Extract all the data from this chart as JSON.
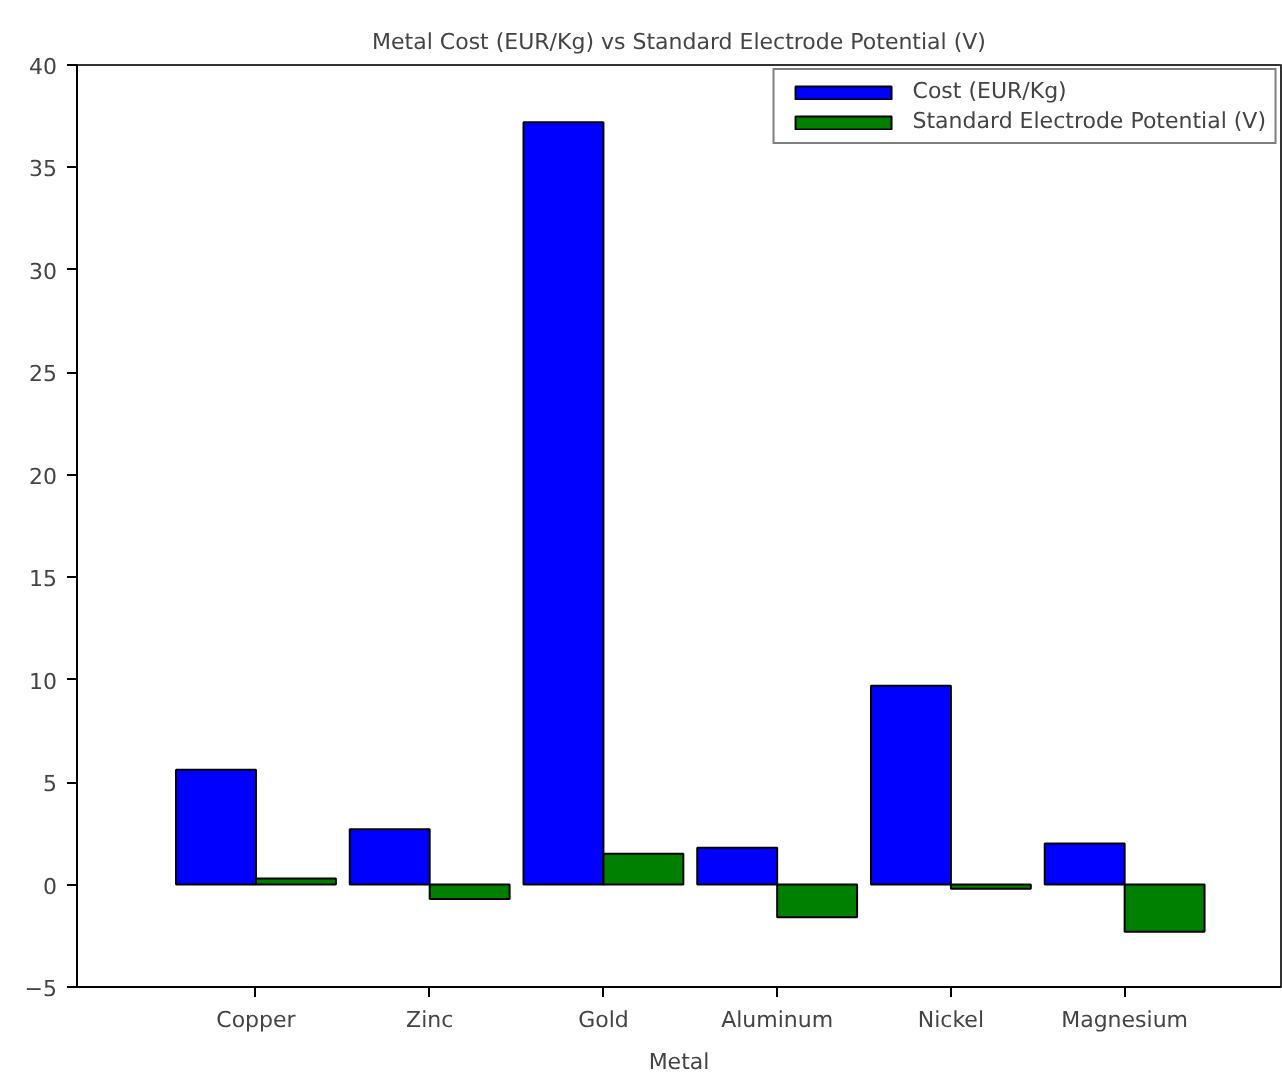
{
  "chart_data": {
    "type": "bar",
    "title": "Metal Cost (EUR/Kg) vs Standard Electrode Potential (V)",
    "xlabel": "Metal",
    "categories": [
      "Copper",
      "Zinc",
      "Gold",
      "Aluminum",
      "Nickel",
      "Magnesium"
    ],
    "series": [
      {
        "name": "Cost (EUR/Kg)",
        "color": "#0000ff",
        "values": [
          5.6,
          2.7,
          37.2,
          1.8,
          9.7,
          2.0
        ]
      },
      {
        "name": "Standard Electrode Potential (V)",
        "color": "#008000",
        "values": [
          0.3,
          -0.7,
          1.5,
          -1.6,
          -0.2,
          -2.3
        ]
      }
    ],
    "ylim": [
      -5,
      40
    ],
    "yticks": [
      -5,
      0,
      5,
      10,
      15,
      20,
      25,
      30,
      35,
      40
    ],
    "grid": false,
    "legend": "top right"
  }
}
